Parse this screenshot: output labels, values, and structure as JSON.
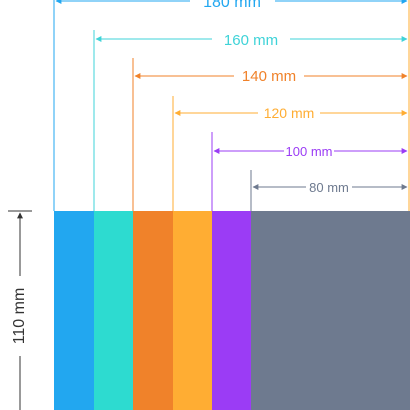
{
  "widths": [
    {
      "label": "180 mm",
      "color": "#22a7f0"
    },
    {
      "label": "160 mm",
      "color": "#2ddbd0"
    },
    {
      "label": "140 mm",
      "color": "#f0822a"
    },
    {
      "label": "120 mm",
      "color": "#ffad33"
    },
    {
      "label": "100 mm",
      "color": "#9b3cf5"
    },
    {
      "label": "80 mm",
      "color": "#6e7a8f"
    }
  ],
  "height": {
    "label": "110 mm"
  },
  "colors": {
    "dim_180": "#22a7f0",
    "dim_160": "#3fd3d8",
    "dim_140": "#f0822a",
    "dim_120": "#ffad33",
    "dim_100": "#9b3cf5",
    "dim_80": "#6e7a8f",
    "height_dim": "#333333"
  }
}
